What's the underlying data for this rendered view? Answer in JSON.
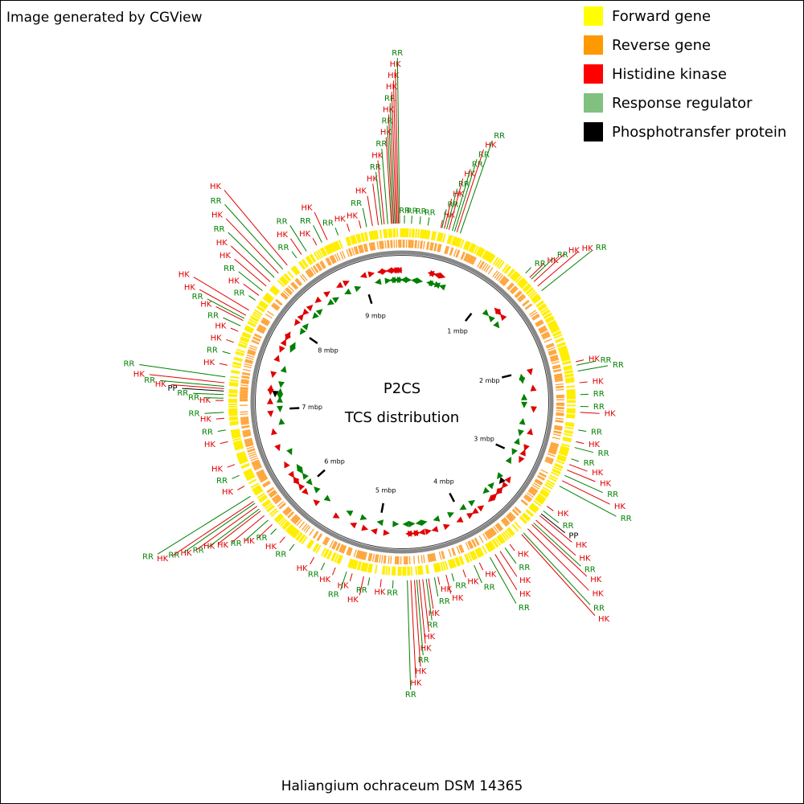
{
  "header": {
    "title": "Image generated by CGView"
  },
  "legend": [
    {
      "label": "Forward gene",
      "color": "#ffff00"
    },
    {
      "label": "Reverse gene",
      "color": "#ff9900"
    },
    {
      "label": "Histidine kinase",
      "color": "#ff0000"
    },
    {
      "label": "Response regulator",
      "color": "#80c080"
    },
    {
      "label": "Phosphotransfer protein",
      "color": "#000000"
    }
  ],
  "map": {
    "title": "P2CS",
    "subtitle": "TCS distribution",
    "range_mbp": [
      0,
      9.45
    ],
    "ticks": [
      {
        "value": 1,
        "label": "1 mbp"
      },
      {
        "value": 2,
        "label": "2 mbp"
      },
      {
        "value": 3,
        "label": "3 mbp"
      },
      {
        "value": 4,
        "label": "4 mbp"
      },
      {
        "value": 5,
        "label": "5 mbp"
      },
      {
        "value": 6,
        "label": "6 mbp"
      },
      {
        "value": 7,
        "label": "7 mbp"
      },
      {
        "value": 8,
        "label": "8 mbp"
      },
      {
        "value": 9,
        "label": "9 mbp"
      }
    ]
  },
  "features": {
    "series": [
      {
        "name": "HK",
        "color": "#e00000",
        "positions_mbp": [
          9.36,
          9.38,
          9.4,
          9.41,
          9.42,
          0.33,
          0.36,
          0.4,
          0.47,
          1.2,
          1.25,
          1.3,
          2.02,
          2.2,
          2.45,
          2.7,
          2.9,
          2.95,
          3.05,
          3.3,
          3.4,
          3.45,
          3.5,
          3.55,
          3.62,
          3.75,
          3.85,
          3.9,
          4.05,
          4.2,
          4.35,
          4.42,
          4.5,
          4.55,
          4.58,
          4.62,
          4.65,
          4.9,
          5.05,
          5.15,
          5.3,
          5.5,
          5.8,
          5.95,
          6.05,
          6.1,
          6.15,
          6.2,
          6.35,
          6.55,
          6.75,
          6.95,
          7.1,
          7.2,
          7.25,
          7.4,
          7.6,
          7.7,
          7.8,
          7.85,
          7.9,
          8.05,
          8.15,
          8.2,
          8.3,
          8.4,
          8.55,
          8.7,
          8.8,
          9.0,
          9.1,
          9.2,
          9.25,
          9.3
        ]
      },
      {
        "name": "RR",
        "color": "#008000",
        "positions_mbp": [
          9.37,
          9.39,
          9.43,
          0.02,
          0.08,
          0.15,
          0.22,
          0.34,
          0.38,
          0.43,
          0.45,
          0.5,
          1.15,
          1.22,
          1.35,
          2.05,
          2.1,
          2.3,
          2.4,
          2.6,
          2.75,
          2.85,
          3.0,
          3.1,
          3.35,
          3.48,
          3.6,
          3.8,
          3.95,
          4.1,
          4.3,
          4.45,
          4.52,
          4.6,
          4.68,
          4.8,
          5.0,
          5.2,
          5.4,
          5.7,
          5.9,
          6.0,
          6.12,
          6.18,
          6.25,
          6.45,
          6.85,
          7.0,
          7.12,
          7.15,
          7.22,
          7.3,
          7.5,
          7.75,
          7.82,
          8.0,
          8.1,
          8.25,
          8.35,
          8.5,
          8.6,
          8.75,
          8.9,
          9.15,
          9.28,
          9.33
        ]
      },
      {
        "name": "PP",
        "color": "#000000",
        "positions_mbp": [
          3.38,
          7.18
        ]
      }
    ]
  },
  "caption": "Haliangium ochraceum DSM 14365"
}
